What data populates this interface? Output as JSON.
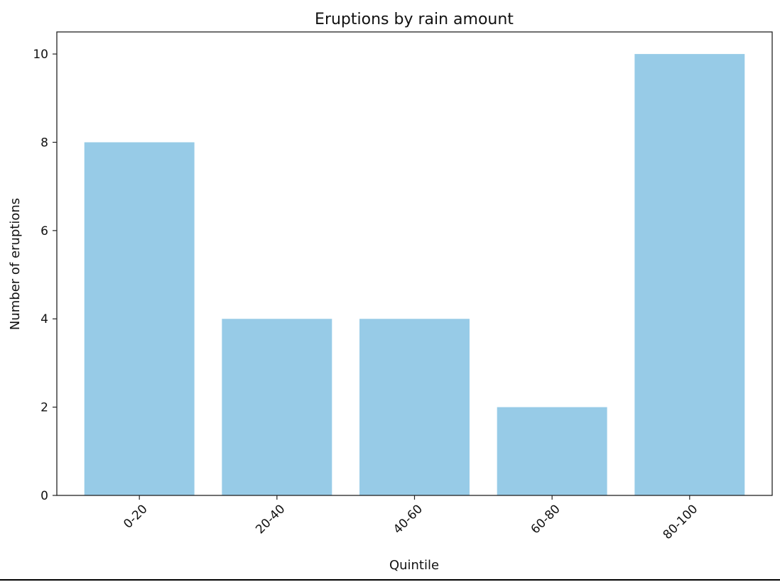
{
  "chart_data": {
    "type": "bar",
    "title": "Eruptions by rain amount",
    "xlabel": "Quintile",
    "ylabel": "Number of eruptions",
    "categories": [
      "0-20",
      "20-40",
      "40-60",
      "60-80",
      "80-100"
    ],
    "values": [
      8,
      4,
      4,
      2,
      10
    ],
    "ylim": [
      0,
      10.5
    ],
    "yticks": [
      0,
      2,
      4,
      6,
      8,
      10
    ],
    "bar_color": "#97cbe7",
    "grid": false,
    "legend": "none"
  }
}
